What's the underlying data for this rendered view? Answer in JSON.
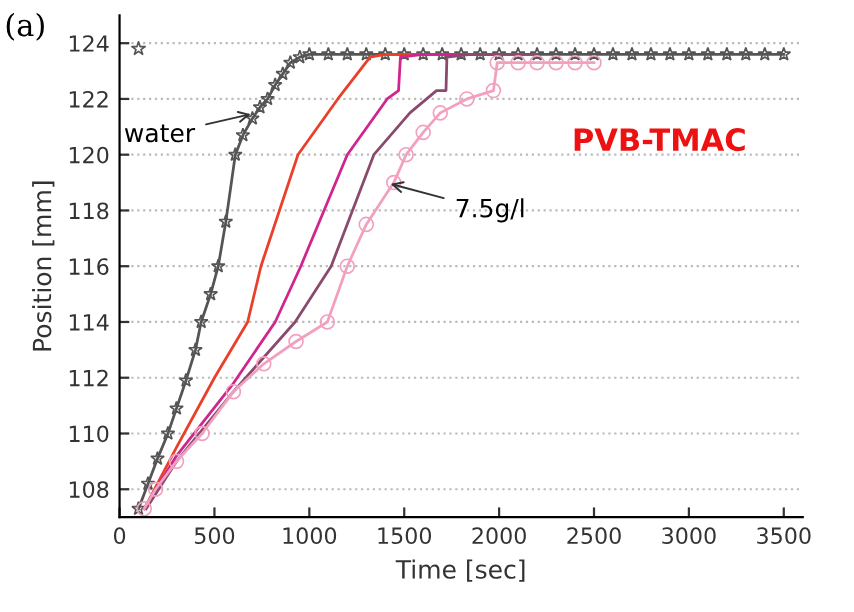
{
  "chart_data": {
    "type": "line",
    "xlabel": "Time [sec]",
    "ylabel": "Position [mm]",
    "xlim": [
      0,
      3600
    ],
    "xticks": [
      0,
      500,
      1000,
      1500,
      2000,
      2500,
      3000,
      3500
    ],
    "ylim": [
      107,
      125
    ],
    "yticks": [
      108,
      110,
      112,
      114,
      116,
      118,
      120,
      122,
      124
    ],
    "grid": "y",
    "line_style": "solid",
    "series": [
      {
        "color": "#555555",
        "marker": "star",
        "x": [
          100,
          150,
          200,
          255,
          300,
          350,
          400,
          430,
          480,
          520,
          560,
          610,
          650,
          700,
          740,
          780,
          820,
          860,
          900,
          950,
          1000,
          1100,
          1200,
          1300,
          1400,
          1500,
          1600,
          1700,
          1800,
          1900,
          2000,
          2100,
          2200,
          2300,
          2400,
          2500,
          2600,
          2700,
          2800,
          2900,
          3000,
          3100,
          3200,
          3300,
          3400,
          3500
        ],
        "values": [
          107.3,
          108.2,
          109.1,
          110,
          110.9,
          111.9,
          113,
          114,
          115,
          116,
          117.6,
          120,
          120.7,
          121.3,
          121.7,
          122,
          122.5,
          122.9,
          123.3,
          123.5,
          123.6,
          123.6,
          123.6,
          123.6,
          123.6,
          123.6,
          123.6,
          123.6,
          123.6,
          123.6,
          123.6,
          123.6,
          123.6,
          123.6,
          123.6,
          123.6,
          123.6,
          123.6,
          123.6,
          123.6,
          123.6,
          123.6,
          123.6,
          123.6,
          123.6,
          123.6
        ]
      },
      {
        "color": "#e8402a",
        "marker": "none",
        "x": [
          130,
          300,
          500,
          675,
          745,
          940,
          1150,
          1320,
          1400,
          2000
        ],
        "values": [
          107.3,
          109.5,
          112,
          114,
          116,
          120,
          122,
          123.5,
          123.6,
          123.6
        ]
      },
      {
        "color": "#d0258f",
        "marker": "none",
        "x": [
          130,
          300,
          600,
          820,
          955,
          1200,
          1410,
          1470,
          1480,
          1600,
          2000
        ],
        "values": [
          107.3,
          109.2,
          111.8,
          114,
          116,
          120,
          122,
          122.3,
          123.5,
          123.6,
          123.6
        ]
      },
      {
        "color": "#8a4a6e",
        "marker": "none",
        "x": [
          140,
          300,
          600,
          925,
          1115,
          1340,
          1530,
          1670,
          1720,
          1725,
          1850,
          2200
        ],
        "values": [
          107.3,
          109,
          111.5,
          114,
          116,
          120,
          121.5,
          122.3,
          122.3,
          123.5,
          123.6,
          123.6
        ]
      },
      {
        "color": "#f2a0c0",
        "marker": "circle",
        "x": [
          130,
          190,
          300,
          435,
          600,
          760,
          930,
          1095,
          1200,
          1300,
          1445,
          1510,
          1600,
          1690,
          1830,
          1970,
          1990,
          2100,
          2200,
          2300,
          2400,
          2500
        ],
        "values": [
          107.3,
          108,
          109,
          110,
          111.5,
          112.5,
          113.3,
          114,
          116,
          117.5,
          119,
          120,
          120.8,
          121.5,
          122,
          122.3,
          123.3,
          123.3,
          123.3,
          123.3,
          123.3,
          123.3
        ]
      },
      {
        "type": "scatter",
        "color": "#555555",
        "marker": "star",
        "x": [
          100
        ],
        "values": [
          123.8
        ]
      }
    ],
    "annotations": [
      {
        "text": "water",
        "x": 720,
        "y": 121.5
      },
      {
        "text": "7.5g/l",
        "x": 1400,
        "y": 119
      },
      "PVB-TMAC",
      "(a)"
    ]
  }
}
